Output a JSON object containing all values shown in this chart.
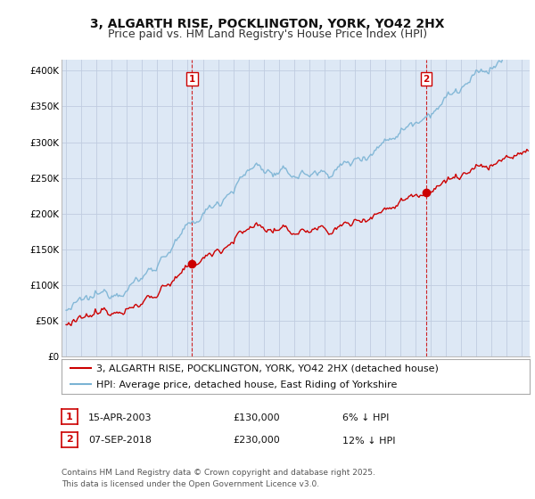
{
  "title": "3, ALGARTH RISE, POCKLINGTON, YORK, YO42 2HX",
  "subtitle": "Price paid vs. HM Land Registry's House Price Index (HPI)",
  "ylabel_ticks": [
    "£0",
    "£50K",
    "£100K",
    "£150K",
    "£200K",
    "£250K",
    "£300K",
    "£350K",
    "£400K"
  ],
  "ytick_values": [
    0,
    50000,
    100000,
    150000,
    200000,
    250000,
    300000,
    350000,
    400000
  ],
  "ylim": [
    0,
    415000
  ],
  "xlim_start": 1994.7,
  "xlim_end": 2025.5,
  "sale1_x": 2003.29,
  "sale1_y": 130000,
  "sale2_x": 2018.69,
  "sale2_y": 230000,
  "sale1_label": "15-APR-2003",
  "sale2_label": "07-SEP-2018",
  "sale1_price": "£130,000",
  "sale2_price": "£230,000",
  "sale1_note": "6% ↓ HPI",
  "sale2_note": "12% ↓ HPI",
  "legend_line1": "3, ALGARTH RISE, POCKLINGTON, YORK, YO42 2HX (detached house)",
  "legend_line2": "HPI: Average price, detached house, East Riding of Yorkshire",
  "footer": "Contains HM Land Registry data © Crown copyright and database right 2025.\nThis data is licensed under the Open Government Licence v3.0.",
  "hpi_color": "#7ab3d4",
  "price_color": "#cc0000",
  "vline_color": "#cc0000",
  "bg_color": "#dde8f5",
  "plot_bg": "#ffffff",
  "grid_color": "#c0cce0",
  "title_fontsize": 10,
  "subtitle_fontsize": 9,
  "axis_fontsize": 7.5,
  "legend_fontsize": 8,
  "footer_fontsize": 6.5
}
